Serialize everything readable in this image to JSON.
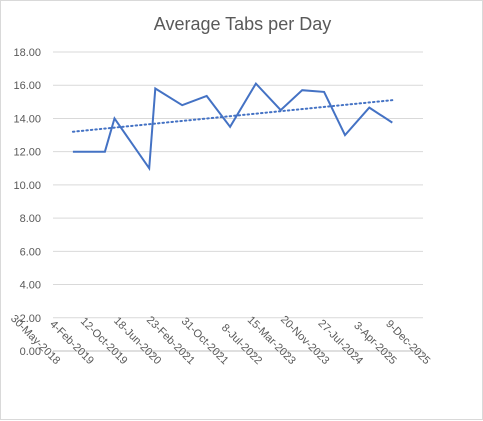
{
  "chart_data": {
    "type": "line",
    "title": "Average Tabs per Day",
    "xlabel": "",
    "ylabel": "",
    "x_axis_type": "date",
    "x_tick_labels": [
      "30-May-2018",
      "4-Feb-2019",
      "12-Oct-2019",
      "18-Jun-2020",
      "23-Feb-2021",
      "31-Oct-2021",
      "8-Jul-2022",
      "15-Mar-2023",
      "20-Nov-2023",
      "27-Jul-2024",
      "3-Apr-2025",
      "9-Dec-2025"
    ],
    "xlim": [
      "2018-05-30",
      "2025-12-09"
    ],
    "ylim": [
      0,
      18
    ],
    "y_tick_step": 2,
    "y_tick_format": "0.00",
    "y_tick_labels": [
      "0.00",
      "2.00",
      "4.00",
      "6.00",
      "8.00",
      "10.00",
      "12.00",
      "14.00",
      "16.00",
      "18.00"
    ],
    "grid": "horizontal",
    "legend": "none",
    "series": [
      {
        "color": "#4472c4",
        "line_style": "solid",
        "points": [
          {
            "x": "2018-10-25",
            "y": 12.0
          },
          {
            "x": "2019-06-20",
            "y": 12.0
          },
          {
            "x": "2019-08-30",
            "y": 14.0
          },
          {
            "x": "2020-05-14",
            "y": 11.0
          },
          {
            "x": "2020-06-28",
            "y": 15.8
          },
          {
            "x": "2021-01-14",
            "y": 14.8
          },
          {
            "x": "2021-07-15",
            "y": 15.35
          },
          {
            "x": "2022-01-05",
            "y": 13.5
          },
          {
            "x": "2022-07-16",
            "y": 16.1
          },
          {
            "x": "2023-01-16",
            "y": 14.5
          },
          {
            "x": "2023-06-25",
            "y": 15.7
          },
          {
            "x": "2023-12-05",
            "y": 15.6
          },
          {
            "x": "2024-05-08",
            "y": 13.0
          },
          {
            "x": "2024-11-05",
            "y": 14.65
          },
          {
            "x": "2025-04-25",
            "y": 13.75
          }
        ]
      }
    ],
    "trendline": {
      "type": "linear",
      "color": "#4472c4",
      "line_style": "dotted",
      "start": {
        "x": "2018-10-25",
        "y": 13.2
      },
      "end": {
        "x": "2025-04-25",
        "y": 15.1
      }
    }
  }
}
